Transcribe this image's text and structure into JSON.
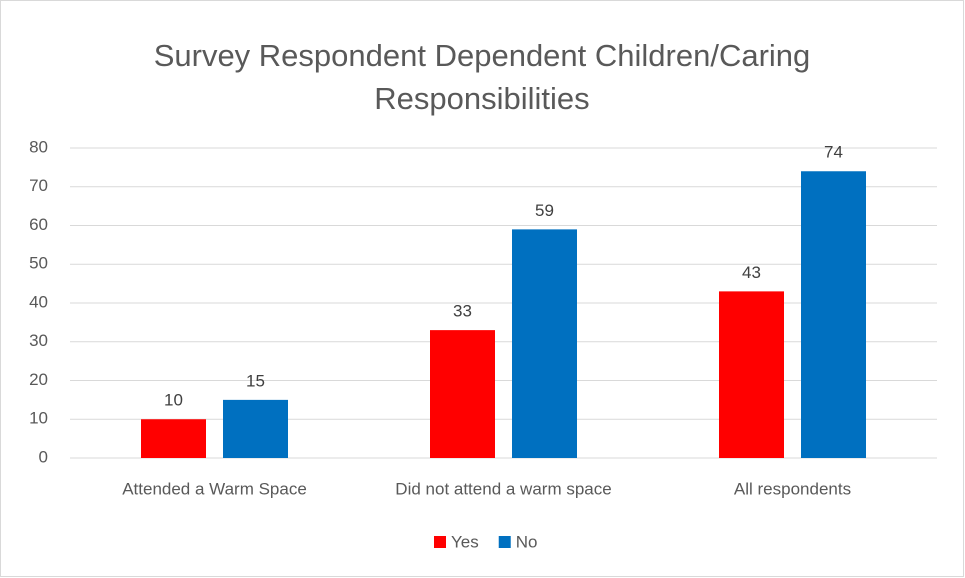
{
  "chart_data": {
    "type": "bar",
    "title": "Survey Respondent Dependent Children/Caring Responsibilities",
    "categories": [
      "Attended a Warm Space",
      "Did not attend a warm space",
      "All respondents"
    ],
    "series": [
      {
        "name": "Yes",
        "color": "#ff0000",
        "values": [
          10,
          33,
          43
        ]
      },
      {
        "name": "No",
        "color": "#0070c0",
        "values": [
          15,
          59,
          74
        ]
      }
    ],
    "ylim": [
      0,
      80
    ],
    "yticks": [
      0,
      10,
      20,
      30,
      40,
      50,
      60,
      70,
      80
    ],
    "grid": true,
    "legend": "bottom",
    "data_labels": true
  }
}
